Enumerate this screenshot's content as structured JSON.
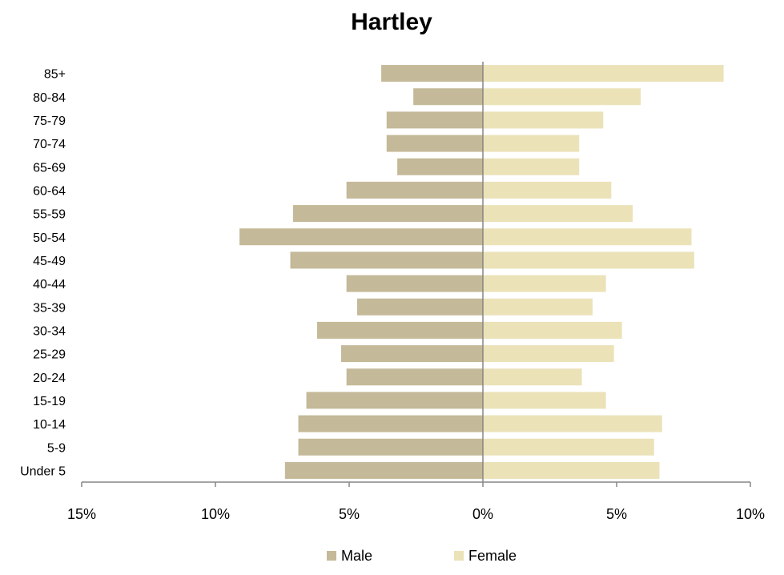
{
  "chart_data": {
    "type": "bar",
    "orientation": "horizontal-population-pyramid",
    "title": "Hartley",
    "categories": [
      "Under 5",
      "5-9",
      "10-14",
      "15-19",
      "20-24",
      "25-29",
      "30-34",
      "35-39",
      "40-44",
      "45-49",
      "50-54",
      "55-59",
      "60-64",
      "65-69",
      "70-74",
      "75-79",
      "80-84",
      "85+"
    ],
    "series": [
      {
        "name": "Male",
        "color": "#c4b998",
        "values": [
          7.4,
          6.9,
          6.9,
          6.6,
          5.1,
          5.3,
          6.2,
          4.7,
          5.1,
          7.2,
          9.1,
          7.1,
          5.1,
          3.2,
          3.6,
          3.6,
          2.6,
          3.8
        ]
      },
      {
        "name": "Female",
        "color": "#ebe2b8",
        "values": [
          6.6,
          6.4,
          6.7,
          4.6,
          3.7,
          4.9,
          5.2,
          4.1,
          4.6,
          7.9,
          7.8,
          5.6,
          4.8,
          3.6,
          3.6,
          4.5,
          5.9,
          9.0
        ]
      }
    ],
    "xlim": [
      -15,
      10
    ],
    "xticks": [
      -15,
      -10,
      -5,
      0,
      5,
      10
    ],
    "xtick_labels": [
      "15%",
      "10%",
      "5%",
      "0%",
      "5%",
      "10%"
    ],
    "unit": "%",
    "legend_position": "bottom",
    "grid": false
  }
}
